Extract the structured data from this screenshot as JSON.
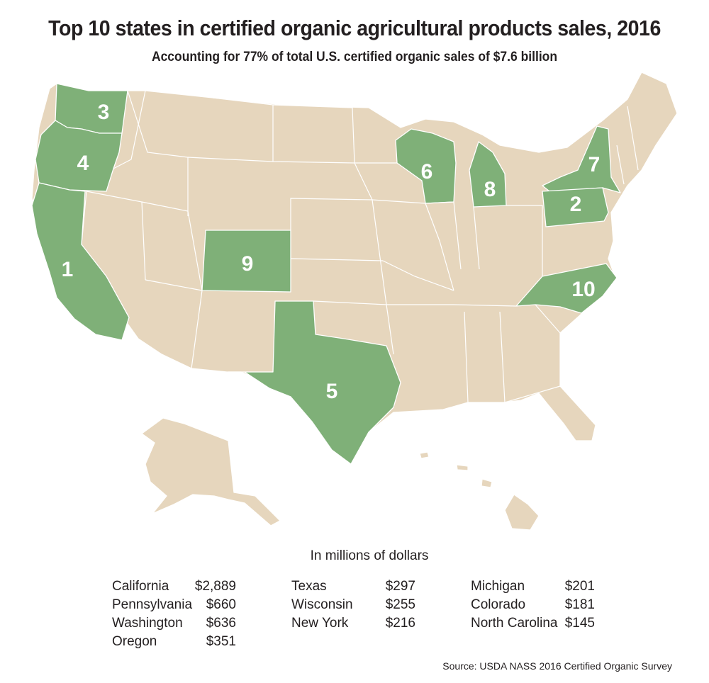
{
  "title": "Top 10 states in certified organic agricultural products sales, 2016",
  "subtitle": "Accounting for 77% of total U.S. certified organic sales of $7.6 billion",
  "units_label": "In millions of dollars",
  "source": "Source: USDA NASS 2016 Certified Organic Survey",
  "colors": {
    "highlight": "#7fb078",
    "base": "#e6d6bd",
    "border": "#ffffff",
    "label": "#ffffff"
  },
  "ranks": [
    {
      "rank": "1",
      "state": "California"
    },
    {
      "rank": "2",
      "state": "Pennsylvania"
    },
    {
      "rank": "3",
      "state": "Washington"
    },
    {
      "rank": "4",
      "state": "Oregon"
    },
    {
      "rank": "5",
      "state": "Texas"
    },
    {
      "rank": "6",
      "state": "Wisconsin"
    },
    {
      "rank": "7",
      "state": "New York"
    },
    {
      "rank": "8",
      "state": "Michigan"
    },
    {
      "rank": "9",
      "state": "Colorado"
    },
    {
      "rank": "10",
      "state": "North Carolina"
    }
  ],
  "table": [
    [
      {
        "state": "California",
        "value": "$2,889"
      },
      {
        "state": "Pennsylvania",
        "value": "$660"
      },
      {
        "state": "Washington",
        "value": "$636"
      },
      {
        "state": "Oregon",
        "value": "$351"
      }
    ],
    [
      {
        "state": "Texas",
        "value": "$297"
      },
      {
        "state": "Wisconsin",
        "value": "$255"
      },
      {
        "state": "New York",
        "value": "$216"
      }
    ],
    [
      {
        "state": "Michigan",
        "value": "$201"
      },
      {
        "state": "Colorado",
        "value": "$181"
      },
      {
        "state": "North Carolina",
        "value": "$145"
      }
    ]
  ]
}
